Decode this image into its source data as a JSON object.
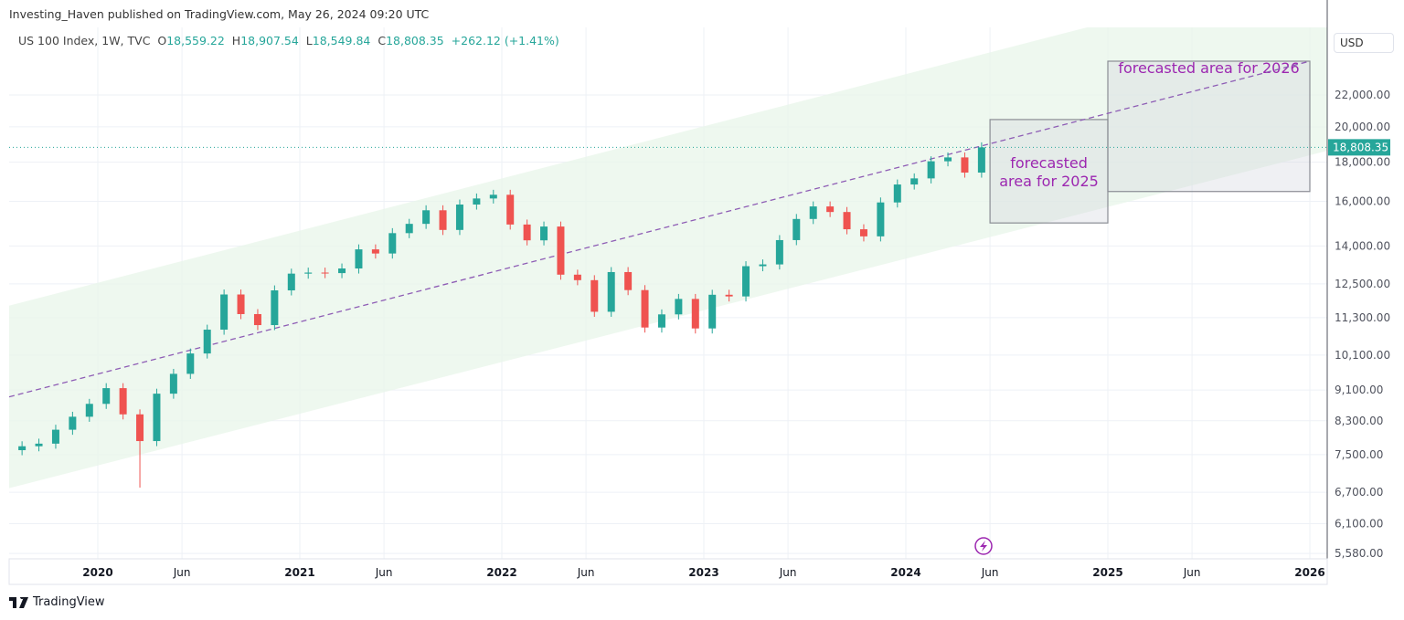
{
  "header": {
    "published": "Investing_Haven published on TradingView.com, May 26, 2024 09:20 UTC"
  },
  "legend": {
    "symbol": "US 100 Index, 1W, TVC",
    "open_label": "O",
    "open": "18,559.22",
    "high_label": "H",
    "high": "18,907.54",
    "low_label": "L",
    "low": "18,549.84",
    "close_label": "C",
    "close": "18,808.35",
    "change": "+262.12 (+1.41%)"
  },
  "currency_button": "USD",
  "footer": {
    "brand": "TradingView"
  },
  "colors": {
    "up": "#26a69a",
    "down": "#ef5350",
    "channel": "#e8f5e9",
    "midline": "#8e5db5",
    "annotation_text": "#9c27b0",
    "box_fill": "#d1d4dc"
  },
  "chart_data": {
    "type": "candlestick",
    "scale": "log",
    "grid": true,
    "y_ticks": [
      "22,000.00",
      "20,000.00",
      "18,000.00",
      "16,000.00",
      "14,000.00",
      "12,500.00",
      "11,300.00",
      "10,100.00",
      "9,100.00",
      "8,300.00",
      "7,500.00",
      "6,700.00",
      "6,100.00",
      "5,580.00"
    ],
    "y_tick_values": [
      22000,
      20000,
      18000,
      16000,
      14000,
      12500,
      11300,
      10100,
      9100,
      8300,
      7500,
      6700,
      6100,
      5580
    ],
    "x_ticks": [
      {
        "label": "2020",
        "date": "2020-01",
        "bold": true
      },
      {
        "label": "Jun",
        "date": "2020-06"
      },
      {
        "label": "2021",
        "date": "2021-01",
        "bold": true
      },
      {
        "label": "Jun",
        "date": "2021-06"
      },
      {
        "label": "2022",
        "date": "2022-01",
        "bold": true
      },
      {
        "label": "Jun",
        "date": "2022-06"
      },
      {
        "label": "2023",
        "date": "2023-01",
        "bold": true
      },
      {
        "label": "Jun",
        "date": "2023-06"
      },
      {
        "label": "2024",
        "date": "2024-01",
        "bold": true
      },
      {
        "label": "Jun",
        "date": "2024-06"
      },
      {
        "label": "2025",
        "date": "2025-01",
        "bold": true
      },
      {
        "label": "Jun",
        "date": "2025-06"
      },
      {
        "label": "2026",
        "date": "2026-01",
        "bold": true
      }
    ],
    "last_price": {
      "value": 18808.35,
      "label": "18,808.35"
    },
    "months": [
      "2019-08",
      "2019-09",
      "2019-10",
      "2019-11",
      "2019-12",
      "2020-01",
      "2020-02",
      "2020-03",
      "2020-04",
      "2020-05",
      "2020-06",
      "2020-07",
      "2020-08",
      "2020-09",
      "2020-10",
      "2020-11",
      "2020-12",
      "2021-01",
      "2021-02",
      "2021-03",
      "2021-04",
      "2021-05",
      "2021-06",
      "2021-07",
      "2021-08",
      "2021-09",
      "2021-10",
      "2021-11",
      "2021-12",
      "2022-01",
      "2022-02",
      "2022-03",
      "2022-04",
      "2022-05",
      "2022-06",
      "2022-07",
      "2022-08",
      "2022-09",
      "2022-10",
      "2022-11",
      "2022-12",
      "2023-01",
      "2023-02",
      "2023-03",
      "2023-04",
      "2023-05",
      "2023-06",
      "2023-07",
      "2023-08",
      "2023-09",
      "2023-10",
      "2023-11",
      "2023-12",
      "2024-01",
      "2024-02",
      "2024-03",
      "2024-04",
      "2024-05"
    ],
    "closes": [
      7690,
      7750,
      8080,
      8400,
      8730,
      9150,
      8460,
      7810,
      9000,
      9550,
      10150,
      10900,
      12110,
      11420,
      11050,
      12260,
      12890,
      12930,
      12910,
      13090,
      13860,
      13690,
      14550,
      14960,
      15580,
      14690,
      15850,
      16140,
      16320,
      14930,
      14240,
      14840,
      12850,
      12640,
      11500,
      12950,
      12270,
      10970,
      11410,
      11950,
      10940,
      12100,
      12040,
      13180,
      13250,
      14250,
      15180,
      15760,
      15500,
      14720,
      14410,
      15950,
      16830,
      17140,
      18040,
      18250,
      17440,
      18808.35
    ],
    "first_open": 7600,
    "channel": {
      "start_date": "2019-07",
      "end_date": "2026-01",
      "upper": [
        11600,
        31990
      ],
      "mid": [
        8830,
        24340
      ],
      "lower": [
        6720,
        18370
      ]
    },
    "annotations": [
      {
        "text_lines": [
          "forecasted",
          "area for 2025"
        ],
        "from": "2024-06",
        "to": "2025-01",
        "top": 20440,
        "bottom": 15000
      },
      {
        "text_lines": [
          "forecasted area for 2026"
        ],
        "from": "2025-01",
        "to": "2026-01",
        "top": 24340,
        "bottom": 16480
      }
    ]
  }
}
